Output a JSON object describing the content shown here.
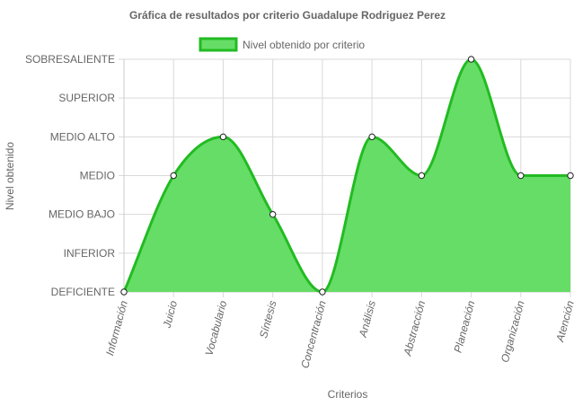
{
  "chart_data": {
    "type": "area",
    "title": "Gráfica de resultados por criterio Guadalupe Rodriguez Perez",
    "xlabel": "Criterios",
    "ylabel": "Nivel obtenido",
    "categories": [
      "Información",
      "Juicio",
      "Vocabulario",
      "Síntesis",
      "Concentración",
      "Análisis",
      "Abstracción",
      "Planeación",
      "Organización",
      "Atención"
    ],
    "y_levels": [
      "DEFICIENTE",
      "INFERIOR",
      "MEDIO BAJO",
      "MEDIO",
      "MEDIO ALTO",
      "SUPERIOR",
      "SOBRESALIENTE"
    ],
    "series": [
      {
        "name": "Nivel obtenido por criterio",
        "values": [
          0,
          3,
          4,
          2,
          0,
          4,
          3,
          6,
          3,
          3
        ]
      }
    ],
    "ylim": [
      0,
      6
    ],
    "grid": true,
    "legend_position": "top",
    "colors": {
      "fill": "#66dd66",
      "line": "#22bb22",
      "point_fill": "#ffffff",
      "point_stroke": "#222222",
      "grid": "#d9d9d9",
      "text": "#666666"
    }
  }
}
